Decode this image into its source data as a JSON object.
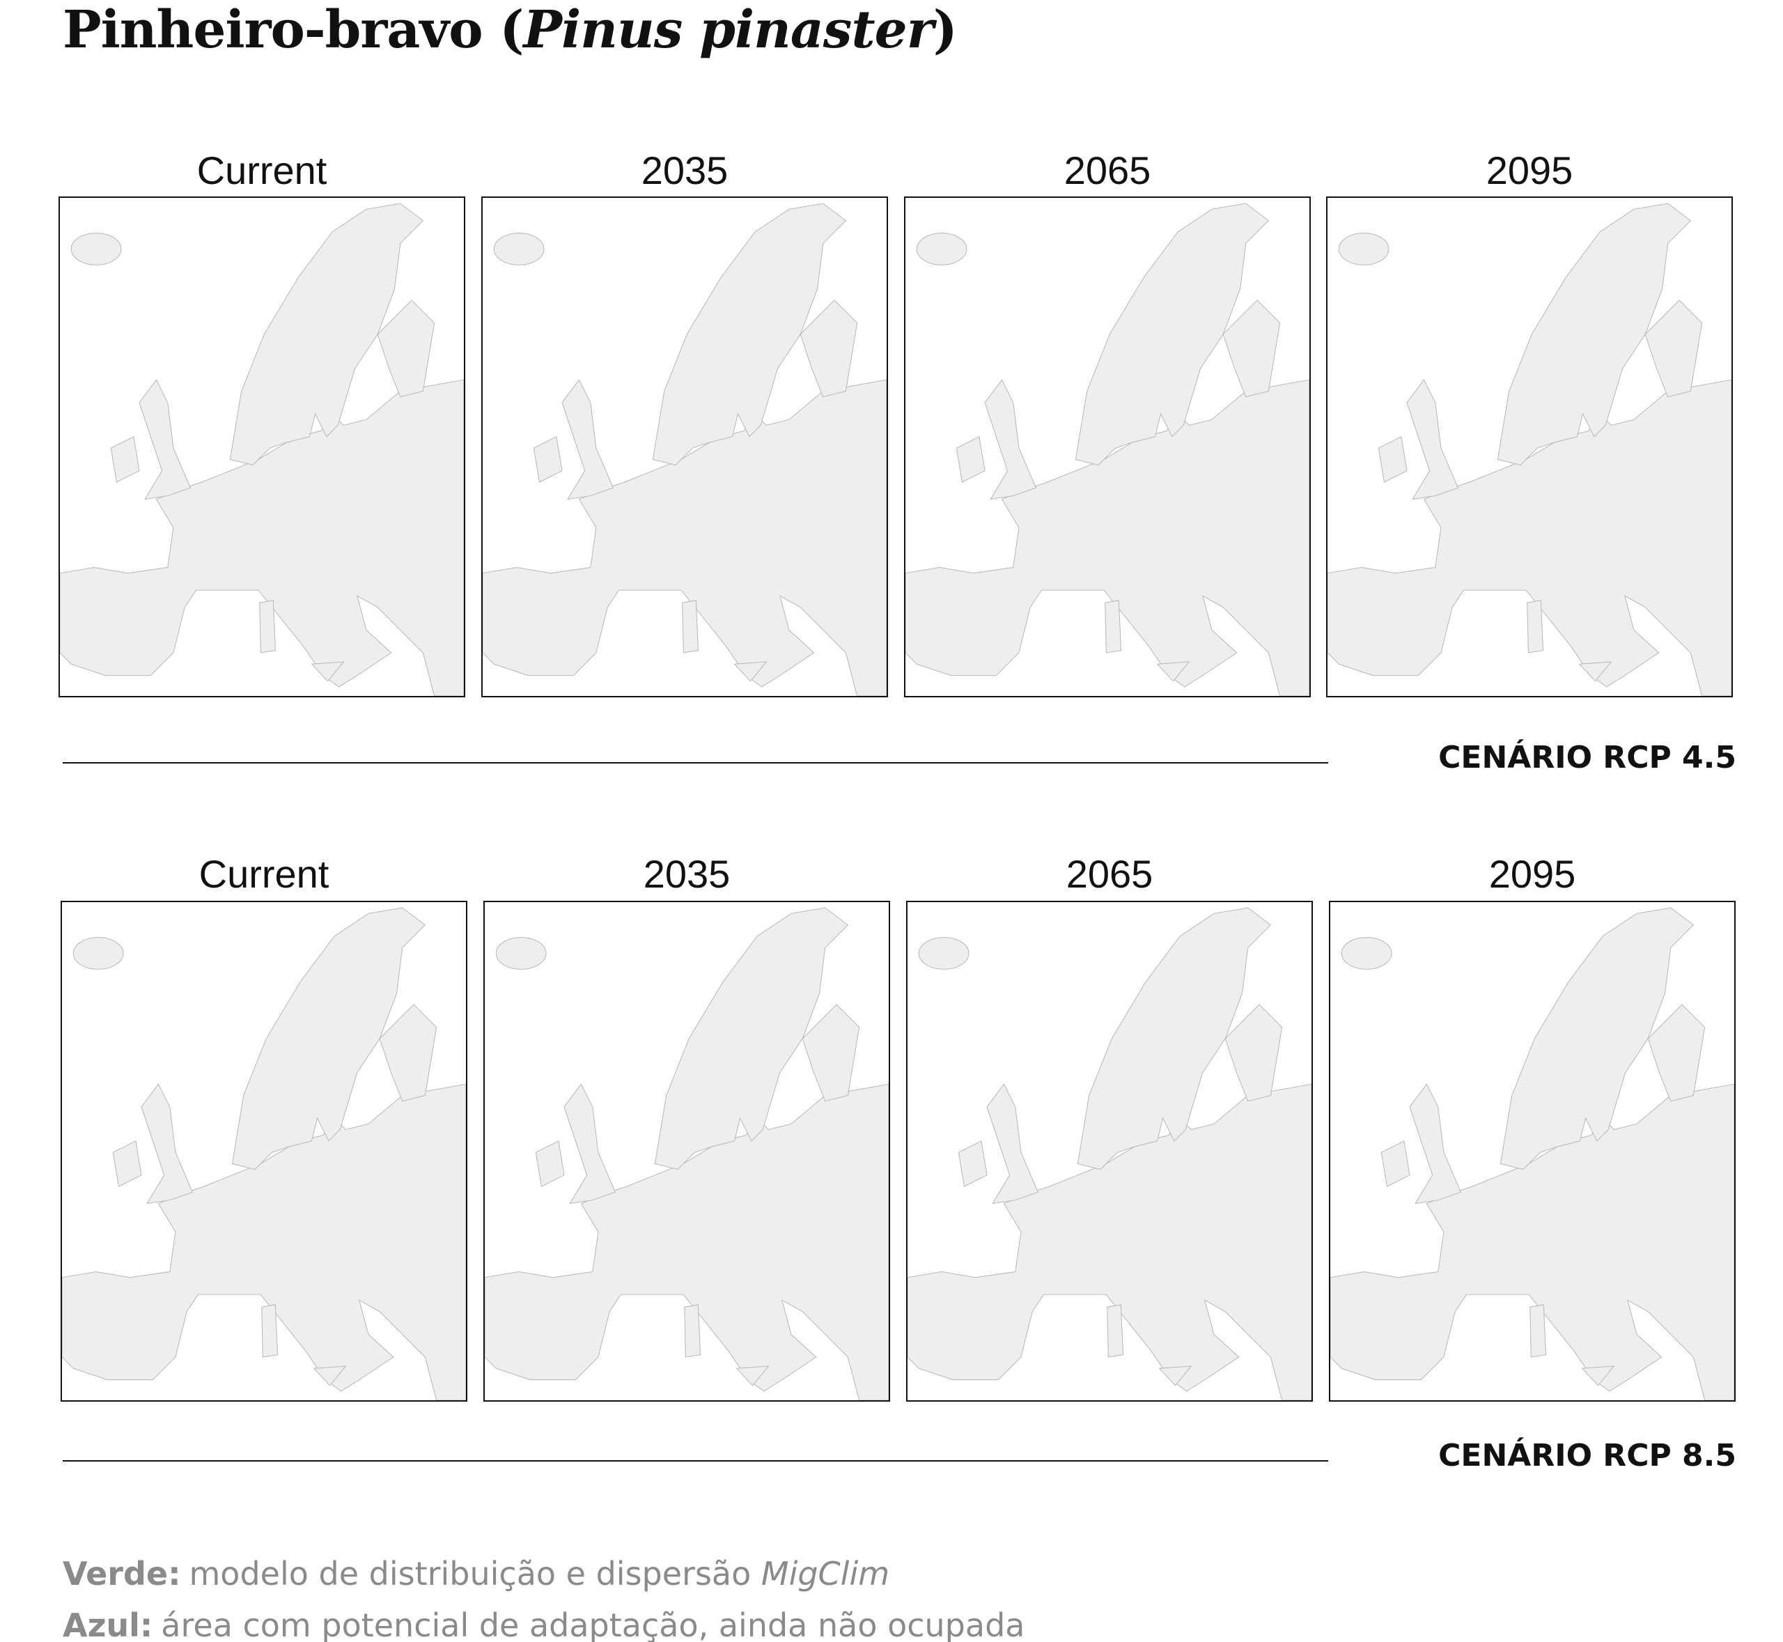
{
  "title": {
    "text": "Pinheiro-bravo (",
    "italic": "Pinus pinaster",
    "end": ")"
  },
  "scenarios": [
    {
      "label": "CENÁRIO RCP 4.5",
      "panels": [
        "Current",
        "2035",
        "2065",
        "2095"
      ]
    },
    {
      "label": "CENÁRIO RCP 8.5",
      "panels": [
        "Current",
        "2035",
        "2065",
        "2095"
      ]
    }
  ],
  "legend": [
    {
      "key": "Verde:",
      "text": "modelo de distribuição e dispersão ",
      "italic": "MigClim"
    },
    {
      "key": "Azul:",
      "text": "área com potencial de adaptação, ainda não ocupada"
    }
  ]
}
